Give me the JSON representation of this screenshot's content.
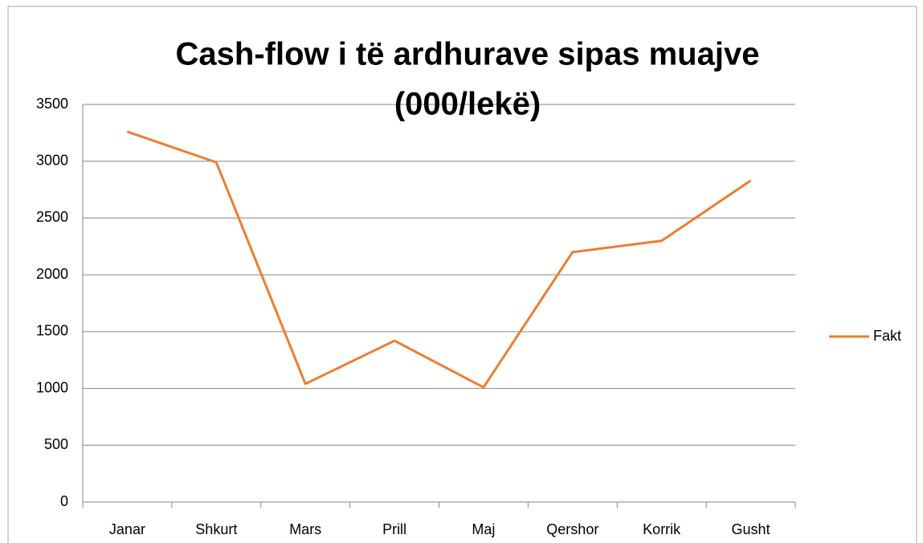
{
  "chart_data": {
    "type": "line",
    "title": [
      "Cash-flow i të ardhurave sipas muajve",
      "(000/lekë)"
    ],
    "categories": [
      "Janar",
      "Shkurt",
      "Mars",
      "Prill",
      "Maj",
      "Qershor",
      "Korrik",
      "Gusht"
    ],
    "series": [
      {
        "name": "Fakt",
        "color": "#ed7d31",
        "values": [
          3260,
          2990,
          1040,
          1420,
          1010,
          2200,
          2300,
          2830
        ]
      }
    ],
    "ylim": [
      0,
      3500
    ],
    "yticks": [
      0,
      500,
      1000,
      1500,
      2000,
      2500,
      3000,
      3500
    ],
    "grid": true,
    "legend": "right"
  }
}
